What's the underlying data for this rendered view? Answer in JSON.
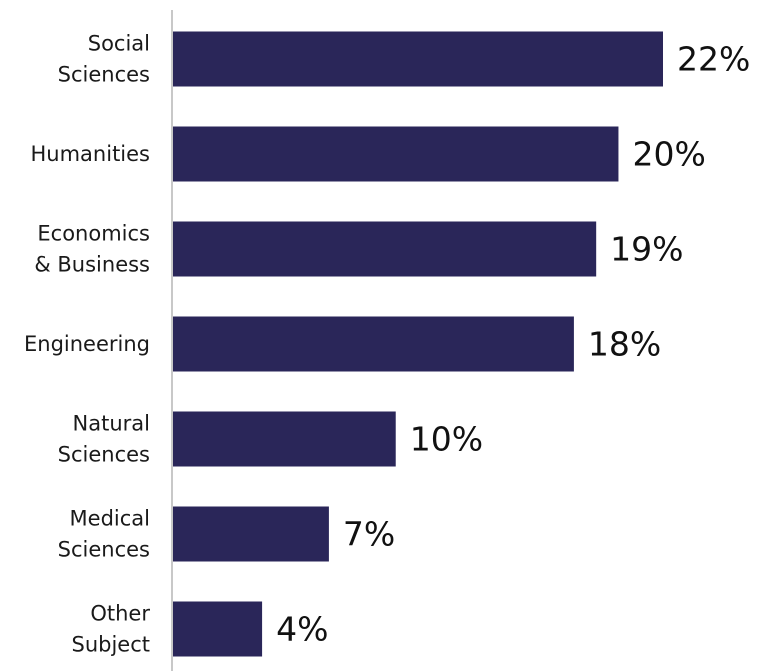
{
  "chart_data": {
    "type": "bar",
    "orientation": "horizontal",
    "categories": [
      [
        "Social",
        "Sciences"
      ],
      [
        "Humanities"
      ],
      [
        "Economics",
        "& Business"
      ],
      [
        "Engineering"
      ],
      [
        "Natural",
        "Sciences"
      ],
      [
        "Medical",
        "Sciences"
      ],
      [
        "Other",
        "Subject"
      ]
    ],
    "values": [
      22,
      20,
      19,
      18,
      10,
      7,
      4
    ],
    "value_labels": [
      "22%",
      "20%",
      "19%",
      "18%",
      "10%",
      "7%",
      "4%"
    ],
    "unit": "%",
    "title": "",
    "xlabel": "",
    "ylabel": "",
    "xlim": [
      0,
      22
    ],
    "grid": false,
    "legend": "none",
    "colors": {
      "bar": "#2a2659",
      "axis": "#c8c8c8",
      "text": "#1a1a1a"
    }
  }
}
